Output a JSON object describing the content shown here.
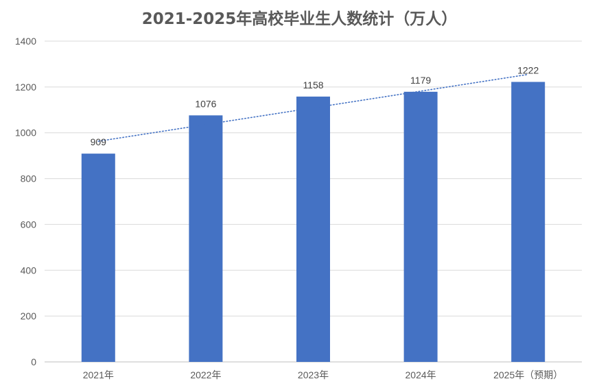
{
  "chart_data": {
    "type": "bar",
    "title": "2021-2025年高校毕业生人数统计（万人）",
    "categories": [
      "2021年",
      "2022年",
      "2023年",
      "2024年",
      "2025年（预期）"
    ],
    "values": [
      909,
      1076,
      1158,
      1179,
      1222
    ],
    "ylim": [
      0,
      1400
    ],
    "yticks": [
      0,
      200,
      400,
      600,
      800,
      1000,
      1200,
      1400
    ],
    "grid": true,
    "trendline": "linear",
    "colors": {
      "bar": "#4472C4",
      "trend": "#4472C4",
      "grid": "#D9D9D9"
    }
  }
}
